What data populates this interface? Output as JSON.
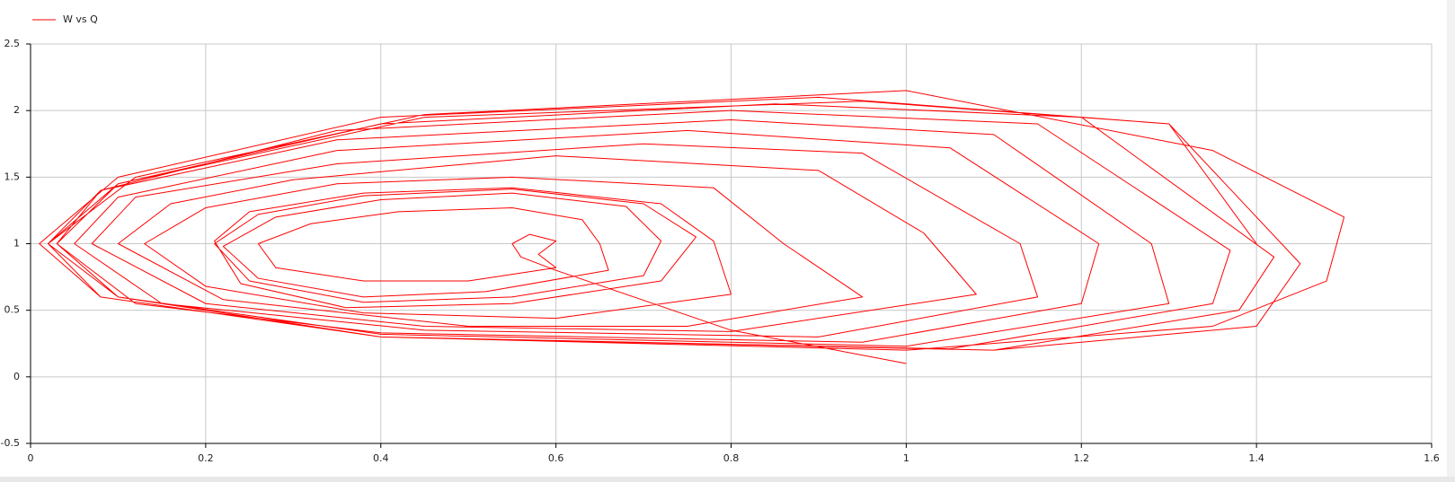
{
  "chart_data": {
    "type": "line",
    "x": [
      1,
      0.8,
      0.6,
      0.56,
      0.55,
      0.57,
      0.6,
      0.58,
      0.6,
      0.5,
      0.38,
      0.28,
      0.26,
      0.32,
      0.42,
      0.55,
      0.63,
      0.65,
      0.66,
      0.52,
      0.38,
      0.26,
      0.22,
      0.28,
      0.4,
      0.55,
      0.68,
      0.72,
      0.7,
      0.55,
      0.38,
      0.25,
      0.21,
      0.26,
      0.38,
      0.55,
      0.7,
      0.76,
      0.72,
      0.55,
      0.36,
      0.24,
      0.21,
      0.25,
      0.38,
      0.55,
      0.72,
      0.78,
      0.8,
      0.6,
      0.38,
      0.2,
      0.13,
      0.2,
      0.35,
      0.55,
      0.78,
      0.86,
      0.95,
      0.75,
      0.5,
      0.22,
      0.1,
      0.16,
      0.3,
      0.6,
      0.9,
      1.02,
      1.08,
      0.8,
      0.45,
      0.2,
      0.07,
      0.12,
      0.35,
      0.7,
      0.95,
      1.13,
      1.15,
      0.9,
      0.45,
      0.15,
      0.05,
      0.1,
      0.35,
      0.75,
      1.05,
      1.22,
      1.2,
      0.95,
      0.4,
      0.12,
      0.03,
      0.08,
      0.35,
      0.8,
      1.1,
      1.28,
      1.3,
      1.0,
      0.4,
      0.1,
      0.02,
      0.08,
      0.35,
      0.8,
      1.15,
      1.37,
      1.35,
      1.05,
      0.4,
      0.1,
      0.02,
      0.1,
      0.4,
      0.85,
      1.2,
      1.42,
      1.38,
      1.1,
      0.4,
      0.08,
      0.01,
      0.1,
      0.4,
      0.9,
      1.3,
      1.45,
      1.4,
      1.1,
      0.4,
      0.08,
      0.02,
      0.12,
      0.45,
      1.0,
      1.35,
      1.5,
      1.48,
      1.35,
      1.0,
      0.4,
      0.1,
      0.03,
      0.1,
      0.45,
      0.95,
      1.3,
      1.4
    ],
    "series": [
      {
        "name": "W vs Q",
        "color": "#ff0000",
        "values": [
          0.1,
          0.35,
          0.8,
          0.9,
          1.0,
          1.07,
          1.02,
          0.92,
          0.82,
          0.72,
          0.72,
          0.82,
          1.0,
          1.15,
          1.24,
          1.27,
          1.18,
          1.0,
          0.8,
          0.64,
          0.6,
          0.74,
          0.98,
          1.2,
          1.33,
          1.38,
          1.28,
          1.02,
          0.76,
          0.6,
          0.56,
          0.72,
          1.0,
          1.22,
          1.36,
          1.41,
          1.3,
          1.05,
          0.72,
          0.55,
          0.52,
          0.7,
          1.02,
          1.24,
          1.38,
          1.42,
          1.3,
          1.02,
          0.62,
          0.44,
          0.48,
          0.68,
          1.0,
          1.27,
          1.45,
          1.5,
          1.42,
          1.0,
          0.6,
          0.38,
          0.38,
          0.58,
          1.0,
          1.3,
          1.48,
          1.66,
          1.55,
          1.08,
          0.62,
          0.34,
          0.38,
          0.55,
          1.0,
          1.35,
          1.6,
          1.75,
          1.68,
          1.0,
          0.6,
          0.3,
          0.35,
          0.55,
          1.0,
          1.35,
          1.7,
          1.85,
          1.72,
          1.0,
          0.55,
          0.26,
          0.33,
          0.55,
          1.0,
          1.4,
          1.78,
          1.93,
          1.82,
          1.0,
          0.55,
          0.23,
          0.32,
          0.6,
          1.0,
          1.4,
          1.85,
          2.0,
          1.9,
          0.95,
          0.55,
          0.21,
          0.3,
          0.6,
          1.0,
          1.45,
          1.9,
          2.05,
          1.95,
          0.9,
          0.5,
          0.2,
          0.3,
          0.6,
          1.0,
          1.5,
          1.95,
          2.1,
          1.9,
          0.85,
          0.38,
          0.2,
          0.3,
          0.6,
          1.0,
          1.5,
          1.97,
          2.15,
          1.7,
          1.2,
          0.72,
          0.38,
          0.2,
          0.3,
          0.6,
          1.0,
          1.45,
          1.95,
          2.07,
          1.9,
          1.0
        ]
      }
    ],
    "xlim": [
      0,
      1.6
    ],
    "xticks": [
      0,
      0.2,
      0.4,
      0.6,
      0.8,
      1,
      1.2,
      1.4,
      1.6
    ],
    "ylim": [
      -0.5,
      2.5
    ],
    "yticks": [
      -0.5,
      0,
      0.5,
      1,
      1.5,
      2,
      2.5
    ],
    "grid": true
  }
}
